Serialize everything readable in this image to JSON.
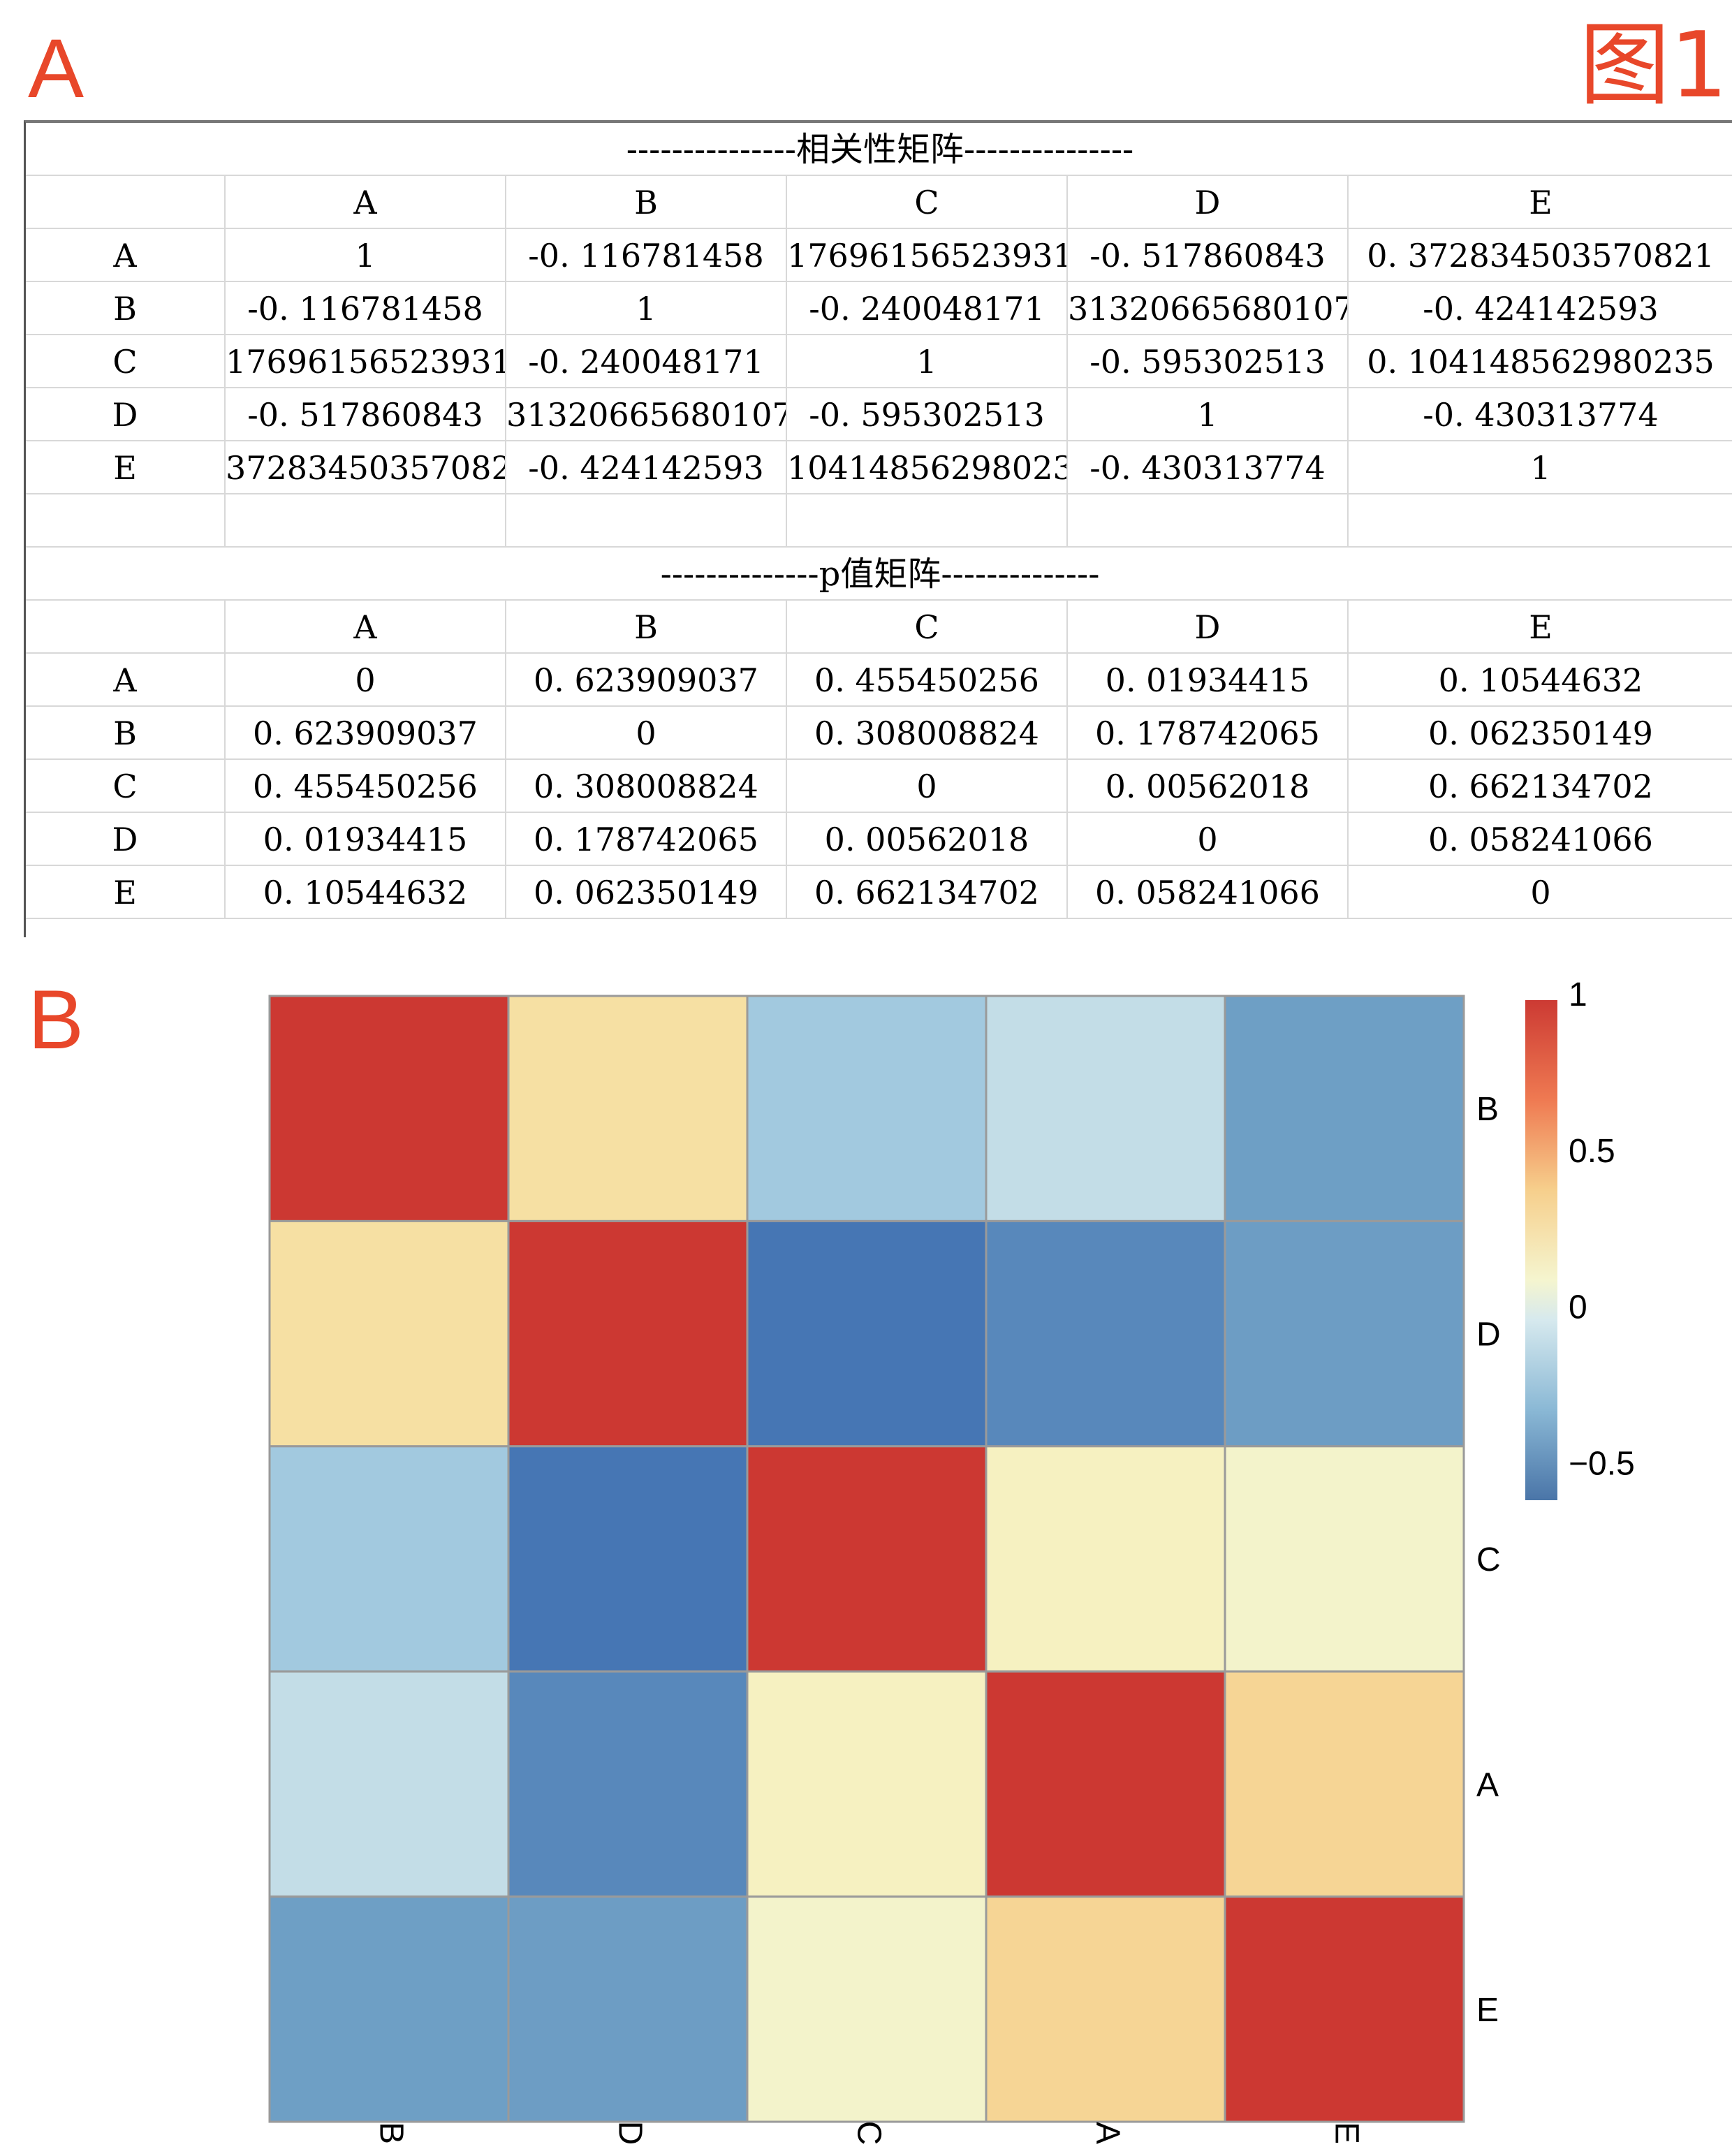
{
  "panel_labels": {
    "a": "A",
    "b": "B",
    "figure": "图1"
  },
  "table": {
    "corr_title": "---------------相关性矩阵---------------",
    "p_title": "--------------p值矩阵--------------",
    "headers": [
      "A",
      "B",
      "C",
      "D",
      "E"
    ],
    "row_labels": [
      "A",
      "B",
      "C",
      "D",
      "E"
    ],
    "corr_rows": [
      [
        "1",
        "-0. 116781458",
        "17696156523931",
        "-0. 517860843",
        "0. 372834503570821"
      ],
      [
        "-0. 116781458",
        "1",
        "-0. 240048171",
        "31320665680107",
        "-0. 424142593"
      ],
      [
        "17696156523931",
        "-0. 240048171",
        "1",
        "-0. 595302513",
        "0. 104148562980235"
      ],
      [
        "-0. 517860843",
        "31320665680107",
        "-0. 595302513",
        "1",
        "-0. 430313774"
      ],
      [
        "37283450357082",
        "-0. 424142593",
        "10414856298023",
        "-0. 430313774",
        "1"
      ]
    ],
    "p_rows": [
      [
        "0",
        "0. 623909037",
        "0. 455450256",
        "0. 01934415",
        "0. 10544632"
      ],
      [
        "0. 623909037",
        "0",
        "0. 308008824",
        "0. 178742065",
        "0. 062350149"
      ],
      [
        "0. 455450256",
        "0. 308008824",
        "0",
        "0. 00562018",
        "0. 662134702"
      ],
      [
        "0. 01934415",
        "0. 178742065",
        "0. 00562018",
        "0",
        "0. 058241066"
      ],
      [
        "0. 10544632",
        "0. 062350149",
        "0. 662134702",
        "0. 058241066",
        "0"
      ]
    ]
  },
  "chart_data": {
    "type": "heatmap",
    "rows": [
      "B",
      "D",
      "C",
      "A",
      "E"
    ],
    "cols": [
      "B",
      "D",
      "C",
      "A",
      "E"
    ],
    "values": [
      [
        1,
        0.3132,
        -0.24,
        -0.1168,
        -0.4241
      ],
      [
        0.3132,
        1,
        -0.5953,
        -0.5179,
        -0.4303
      ],
      [
        -0.24,
        -0.5953,
        1,
        0.177,
        0.1041
      ],
      [
        -0.1168,
        -0.5179,
        0.177,
        1,
        0.3728
      ],
      [
        -0.4241,
        -0.4303,
        0.1041,
        0.3728,
        1
      ]
    ],
    "legend": {
      "ticks": [
        "1",
        "0.5",
        "0",
        "−0.5"
      ],
      "tick_values": [
        1,
        0.5,
        0,
        -0.5
      ],
      "min": -0.6,
      "max": 1
    },
    "colors": {
      "low": "#4575b4",
      "mid_low": "#91bfdb",
      "mid": "#f7f9d8",
      "mid_high": "#fdd58a",
      "high": "#d73027"
    }
  }
}
